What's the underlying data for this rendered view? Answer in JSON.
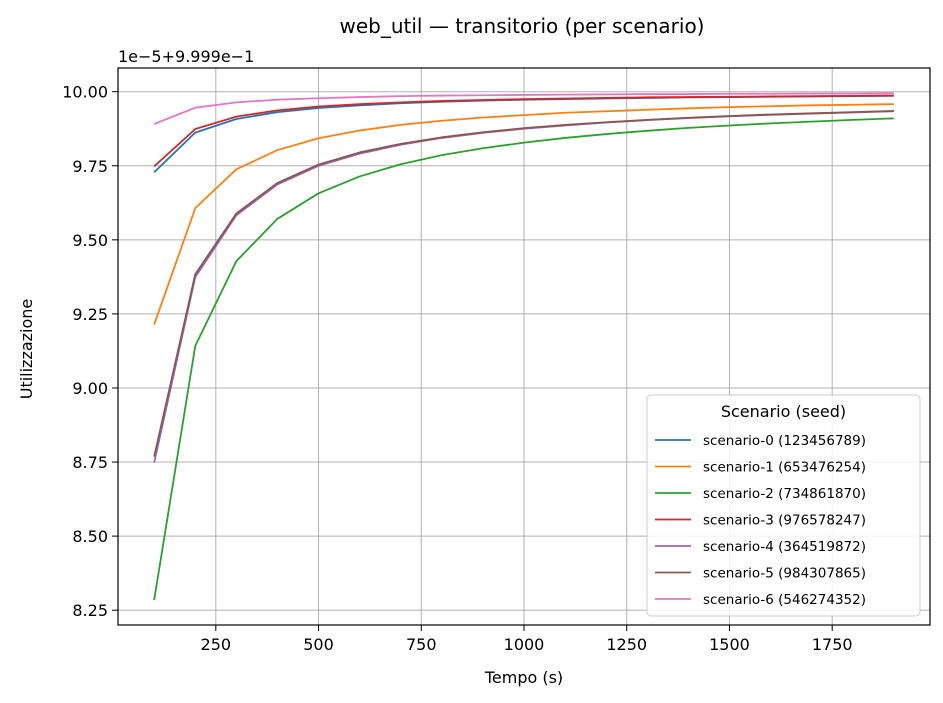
{
  "chart_data": {
    "type": "line",
    "title": "web_util — transitorio (per scenario)",
    "xlabel": "Tempo (s)",
    "ylabel": "Utilizzazione",
    "y_offset_label": "1e−5+9.999e−1",
    "xlim": [
      12,
      1988
    ],
    "ylim": [
      8.2,
      10.08
    ],
    "x_ticks": [
      250,
      500,
      750,
      1000,
      1250,
      1500,
      1750
    ],
    "x_tick_labels": [
      "250",
      "500",
      "750",
      "1000",
      "1250",
      "1500",
      "1750"
    ],
    "y_ticks": [
      8.25,
      8.5,
      8.75,
      9.0,
      9.25,
      9.5,
      9.75,
      10.0
    ],
    "y_tick_labels": [
      "8.25",
      "8.50",
      "8.75",
      "9.00",
      "9.25",
      "9.50",
      "9.75",
      "10.00"
    ],
    "grid": true,
    "legend": {
      "title": "Scenario (seed)",
      "placement": "lower-right"
    },
    "x": [
      100,
      200,
      300,
      400,
      500,
      600,
      700,
      800,
      900,
      1000,
      1100,
      1200,
      1300,
      1400,
      1500,
      1600,
      1700,
      1800,
      1900
    ],
    "series": [
      {
        "name": "scenario-0 (123456789)",
        "color": "#1f77b4",
        "values": [
          9.728,
          9.862,
          9.908,
          9.931,
          9.945,
          9.954,
          9.961,
          9.966,
          9.97,
          9.973,
          9.975,
          9.977,
          9.979,
          9.981,
          9.982,
          9.983,
          9.984,
          9.985,
          9.986
        ]
      },
      {
        "name": "scenario-1 (653476254)",
        "color": "#ff7f0e",
        "values": [
          9.214,
          9.607,
          9.738,
          9.803,
          9.843,
          9.869,
          9.888,
          9.902,
          9.913,
          9.921,
          9.929,
          9.934,
          9.939,
          9.944,
          9.948,
          9.951,
          9.954,
          9.956,
          9.958
        ]
      },
      {
        "name": "scenario-2 (734861870)",
        "color": "#2ca02c",
        "values": [
          8.284,
          9.142,
          9.428,
          9.571,
          9.657,
          9.714,
          9.755,
          9.786,
          9.809,
          9.828,
          9.844,
          9.857,
          9.868,
          9.878,
          9.886,
          9.893,
          9.899,
          9.905,
          9.91
        ]
      },
      {
        "name": "scenario-3 (976578247)",
        "color": "#d62728",
        "values": [
          9.748,
          9.874,
          9.916,
          9.937,
          9.95,
          9.958,
          9.964,
          9.969,
          9.972,
          9.975,
          9.977,
          9.979,
          9.981,
          9.982,
          9.983,
          9.984,
          9.985,
          9.986,
          9.987
        ]
      },
      {
        "name": "scenario-4 (364519872)",
        "color": "#9467bd",
        "values": [
          8.748,
          9.374,
          9.583,
          9.687,
          9.75,
          9.791,
          9.821,
          9.844,
          9.861,
          9.875,
          9.886,
          9.896,
          9.904,
          9.911,
          9.917,
          9.922,
          9.926,
          9.93,
          9.934
        ]
      },
      {
        "name": "scenario-5 (984307865)",
        "color": "#8c564b",
        "values": [
          8.768,
          9.384,
          9.589,
          9.692,
          9.754,
          9.795,
          9.824,
          9.846,
          9.863,
          9.877,
          9.888,
          9.897,
          9.905,
          9.912,
          9.918,
          9.923,
          9.927,
          9.931,
          9.935
        ]
      },
      {
        "name": "scenario-6 (546274352)",
        "color": "#e377c2",
        "values": [
          9.891,
          9.946,
          9.964,
          9.973,
          9.978,
          9.982,
          9.985,
          9.987,
          9.988,
          9.989,
          9.99,
          9.991,
          9.992,
          9.992,
          9.993,
          9.993,
          9.994,
          9.994,
          9.995
        ]
      }
    ]
  }
}
